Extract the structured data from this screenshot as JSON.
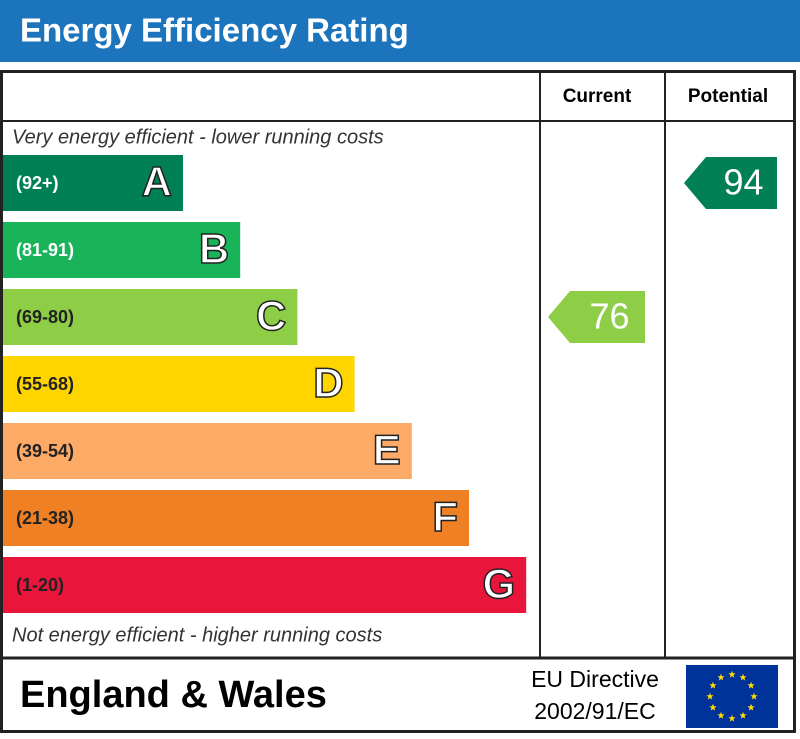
{
  "header": {
    "title": "Energy Efficiency Rating"
  },
  "columns": {
    "current": "Current",
    "potential": "Potential"
  },
  "top_note": "Very energy efficient - lower running costs",
  "bottom_note": "Not energy efficient - higher running costs",
  "bands": [
    {
      "range": "(92+)",
      "letter": "A",
      "color": "#008054",
      "label_color": "#ffffff"
    },
    {
      "range": "(81-91)",
      "letter": "B",
      "color": "#19b459",
      "label_color": "#ffffff"
    },
    {
      "range": "(69-80)",
      "letter": "C",
      "color": "#8dce46",
      "label_color": "#222222"
    },
    {
      "range": "(55-68)",
      "letter": "D",
      "color": "#ffd500",
      "label_color": "#222222"
    },
    {
      "range": "(39-54)",
      "letter": "E",
      "color": "#fcaa65",
      "label_color": "#222222"
    },
    {
      "range": "(21-38)",
      "letter": "F",
      "color": "#ef8023",
      "label_color": "#222222"
    },
    {
      "range": "(1-20)",
      "letter": "G",
      "color": "#e9153b",
      "label_color": "#222222"
    }
  ],
  "current": {
    "value": 76,
    "color": "#8dce46"
  },
  "potential": {
    "value": 94,
    "color": "#008054"
  },
  "footer": {
    "region": "England & Wales",
    "directive": [
      "EU Directive",
      "2002/91/EC"
    ]
  }
}
